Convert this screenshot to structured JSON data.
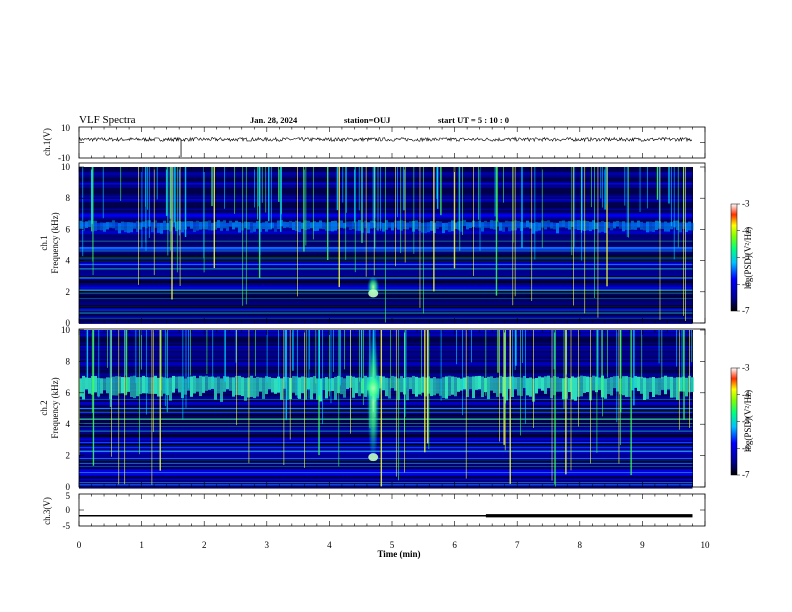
{
  "header": {
    "title": "VLF Spectra",
    "date": "Jan. 28, 2024",
    "station": "station=OUJ",
    "start_ut": "start  UT =  5 : 10 : 0"
  },
  "chart_data": [
    {
      "type": "line",
      "panel": "ch1-waveform",
      "ylabel": "ch.1(V)",
      "ylim": [
        -10,
        10
      ],
      "yticks": [
        "10",
        "-10"
      ],
      "x": [
        0,
        10
      ],
      "series": [
        {
          "values": [
            2,
            2
          ]
        }
      ],
      "line_color": "#000000"
    },
    {
      "type": "heatmap",
      "panel": "ch1-spectrogram",
      "ylabel": "ch.1\nFrequency (kHz)",
      "ylim": [
        0,
        10
      ],
      "yticks": [
        "0",
        "2",
        "4",
        "6",
        "8",
        "10"
      ],
      "xlim": [
        0,
        10
      ],
      "colorbar": {
        "label": "log(PSD)(V²/Hz)",
        "range": [
          -7,
          -3
        ],
        "ticks": [
          "-3",
          "-4",
          "-5",
          "-6",
          "-7"
        ]
      },
      "features": {
        "noise_band_khz": [
          5.8,
          6.5
        ],
        "burst_time_min": 4.7,
        "burst_freq_khz": [
          1.6,
          3.0
        ],
        "sferic_count": 130
      }
    },
    {
      "type": "heatmap",
      "panel": "ch2-spectrogram",
      "ylabel": "ch.2\nFrequency (kHz)",
      "ylim": [
        0,
        10
      ],
      "yticks": [
        "0",
        "2",
        "4",
        "6",
        "8",
        "10"
      ],
      "xlim": [
        0,
        10
      ],
      "colorbar": {
        "label": "log(PSD)(V²/Hz)",
        "range": [
          -7,
          -3
        ],
        "ticks": [
          "-3",
          "-4",
          "-5",
          "-6",
          "-7"
        ]
      },
      "features": {
        "noise_band_khz": [
          5.5,
          7.0
        ],
        "burst_time_min": 4.7,
        "burst_freq_khz": [
          1.6,
          10.0
        ],
        "sferic_count": 130
      }
    },
    {
      "type": "line",
      "panel": "ch3-waveform",
      "ylabel": "ch.3(V)",
      "ylim": [
        -5,
        5
      ],
      "yticks": [
        "5",
        "0",
        "-5"
      ],
      "xlabel": "Time (min)",
      "xlim": [
        0,
        10
      ],
      "xticks": [
        "0",
        "1",
        "2",
        "3",
        "4",
        "5",
        "6",
        "7",
        "8",
        "9",
        "10"
      ],
      "series": [
        {
          "x": [
            0,
            9.8
          ],
          "values": [
            -1.8,
            -1.8
          ]
        }
      ],
      "thick_segment_x": [
        6.5,
        9.8
      ],
      "line_color": "#000000"
    }
  ]
}
